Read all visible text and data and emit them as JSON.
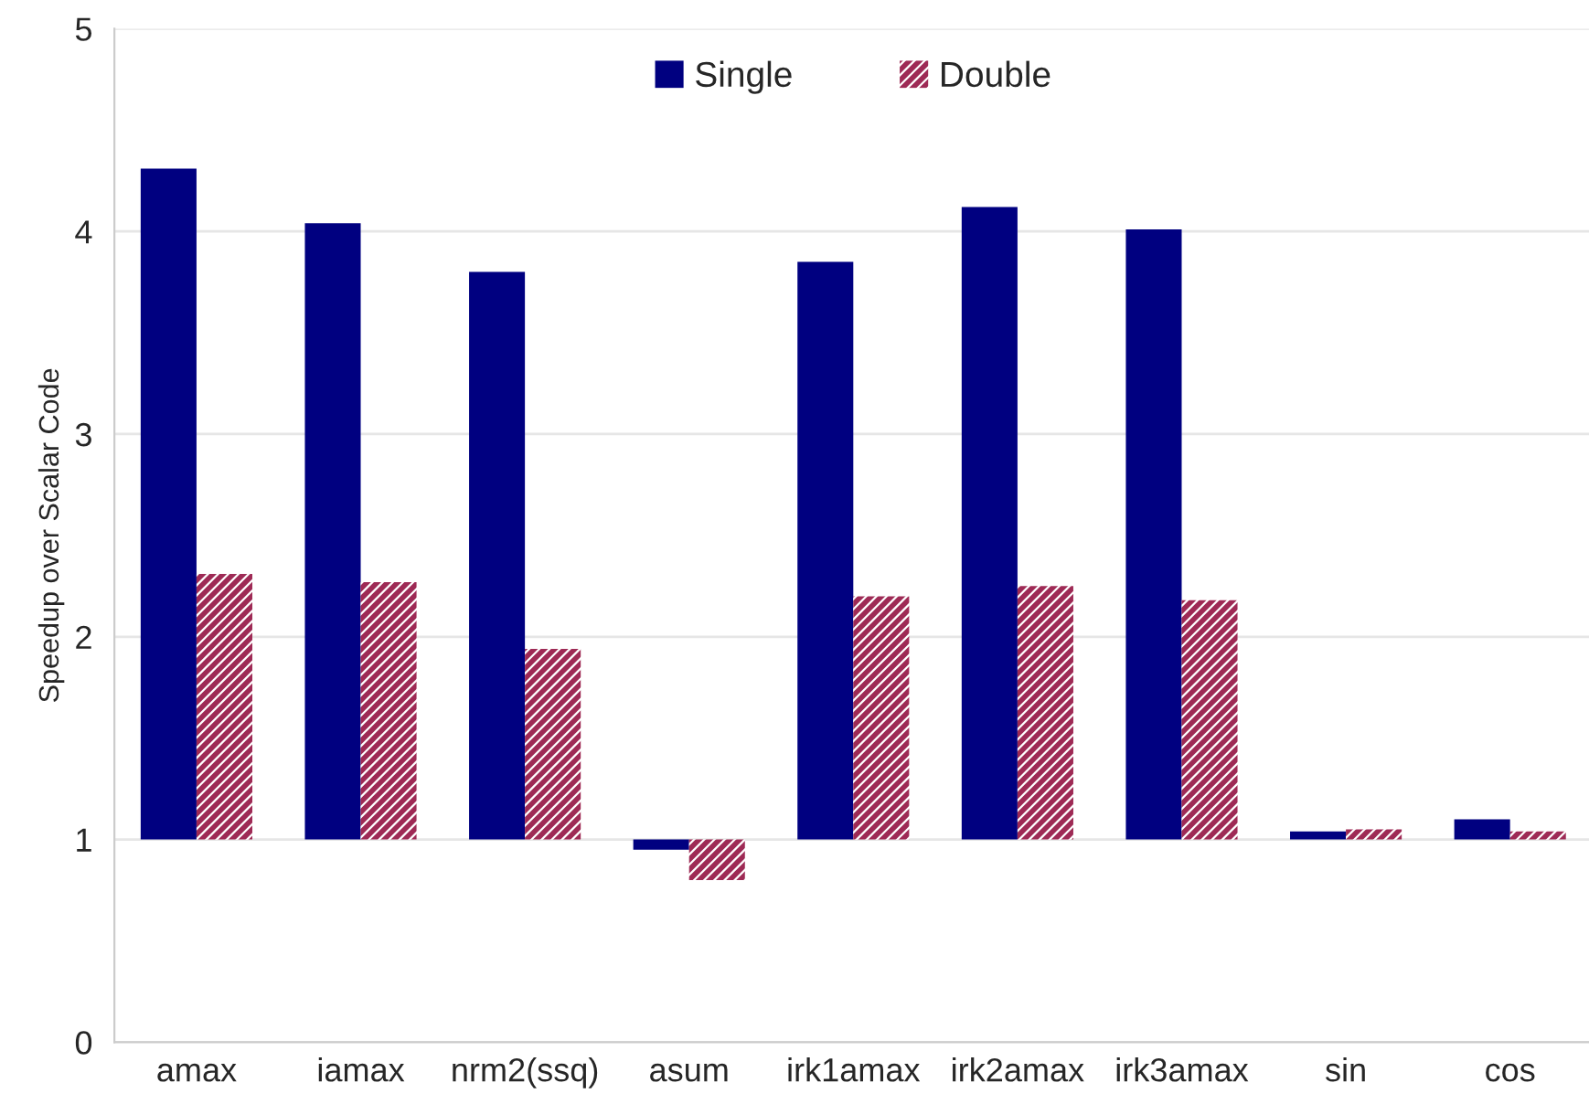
{
  "chart_data": {
    "type": "bar",
    "ylabel": "Speedup over Scalar Code",
    "categories": [
      "amax",
      "iamax",
      "nrm2(ssq)",
      "asum",
      "irk1amax",
      "irk2amax",
      "irk3amax",
      "sin",
      "cos"
    ],
    "series": [
      {
        "name": "Single",
        "color": "#000080",
        "base": [
          1,
          1,
          1,
          1,
          1,
          1,
          1,
          1,
          1
        ],
        "values": [
          3.31,
          3.04,
          2.8,
          -0.05,
          2.85,
          3.12,
          3.01,
          0.04,
          0.1
        ]
      },
      {
        "name": "Double",
        "color": "#9e2a55",
        "base": [
          1,
          1,
          1,
          1,
          1,
          1,
          1,
          1,
          1
        ],
        "values": [
          1.31,
          1.27,
          0.94,
          -0.2,
          1.2,
          1.25,
          1.18,
          0.05,
          0.04
        ]
      }
    ],
    "ylim": [
      0,
      5
    ],
    "yticks": [
      0,
      1,
      2,
      3,
      4,
      5
    ],
    "grid": "y",
    "legend": "top"
  }
}
